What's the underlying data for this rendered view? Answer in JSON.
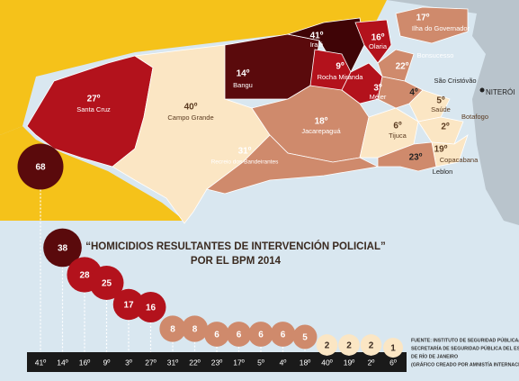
{
  "chart_data": {
    "type": "bubble",
    "title": "“HOMICIDIOS RESULTANTES DE INTERVENCIÓN POLICIAL”",
    "subtitle": "POR EL BPM 2014",
    "categories": [
      "41º",
      "14º",
      "16º",
      "9º",
      "3º",
      "27º",
      "31º",
      "22º",
      "23º",
      "17º",
      "5º",
      "4º",
      "18º",
      "40º",
      "19º",
      "2º",
      "6º"
    ],
    "values": [
      68,
      38,
      28,
      25,
      17,
      16,
      8,
      8,
      6,
      6,
      6,
      6,
      5,
      2,
      2,
      2,
      1
    ],
    "colors": [
      "#5a0a0c",
      "#5a0a0c",
      "#b3121c",
      "#b3121c",
      "#b3121c",
      "#b3121c",
      "#cf8a6c",
      "#cf8a6c",
      "#cf8a6c",
      "#cf8a6c",
      "#cf8a6c",
      "#cf8a6c",
      "#cf8a6c",
      "#fbe6c4",
      "#fbe6c4",
      "#fbe6c4",
      "#fbe6c4"
    ]
  },
  "source": [
    "FUENTE: INSTITUTO DE SEGURIDAD PÚBLICA/",
    "SECRETARÍA DE SEGURIDAD PÚBLICA DEL ESTADO",
    "DE RÍO DE JANEIRO",
    "(GRÁFICO CREADO POR AMNISTÍA INTERNACIONAL)"
  ],
  "map": {
    "regions": [
      {
        "number": "27º",
        "name": "Santa Cruz"
      },
      {
        "number": "40º",
        "name": "Campo Grande"
      },
      {
        "number": "14º",
        "name": "Bangu"
      },
      {
        "number": "41º",
        "name": "Irajá"
      },
      {
        "number": "16º",
        "name": "Olaria"
      },
      {
        "number": "17º",
        "name": "Ilha do Governador"
      },
      {
        "number": "22º",
        "name": "Bonsucesso"
      },
      {
        "number": "9º",
        "name": "Rocha Miranda"
      },
      {
        "number": "3º",
        "name": "Méier"
      },
      {
        "number": "18º",
        "name": "Jacarepaguá"
      },
      {
        "number": "31º",
        "name": "Recreio dos Bandeirantes"
      },
      {
        "number": "6º",
        "name": "Tijuca"
      },
      {
        "number": "4º",
        "name": "São Cristóvão"
      },
      {
        "number": "5º",
        "name": "Saúde"
      },
      {
        "number": "2º",
        "name": "Botafogo"
      },
      {
        "number": "19º",
        "name": "Copacabana"
      },
      {
        "number": "23º",
        "name": "Leblon"
      }
    ],
    "city": "NITERÓI"
  }
}
